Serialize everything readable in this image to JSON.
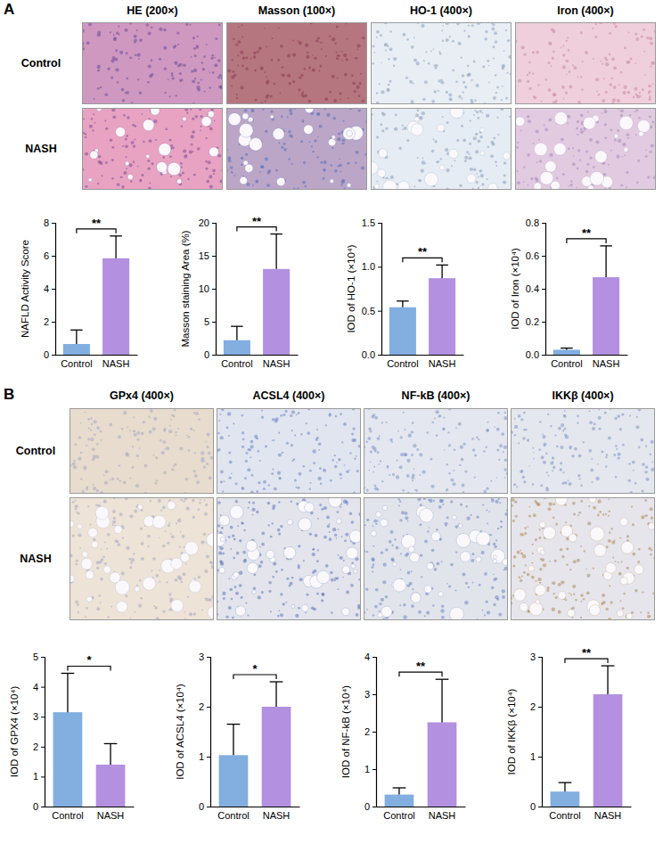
{
  "panels": [
    {
      "label": "A",
      "row_labels": [
        "Control",
        "NASH"
      ],
      "columns": [
        "HE (200×)",
        "Masson (100×)",
        "HO-1 (400×)",
        "Iron (400×)"
      ]
    },
    {
      "label": "B",
      "row_labels": [
        "Control",
        "NASH"
      ],
      "columns": [
        "GPx4 (400×)",
        "ACSL4 (400×)",
        "NF-kB (400×)",
        "IKKβ (400×)"
      ]
    }
  ],
  "chart_data": [
    {
      "type": "bar",
      "y_label": "NAFLD Activity Score",
      "categories": [
        "Control",
        "NASH"
      ],
      "values": [
        0.65,
        5.85
      ],
      "errors": [
        0.85,
        1.35
      ],
      "colors": [
        "#82aee0",
        "#b390e0"
      ],
      "ylim": [
        0,
        8
      ],
      "yticks": [
        0,
        2,
        4,
        6,
        8
      ],
      "annotations": [
        "**"
      ]
    },
    {
      "type": "bar",
      "y_label": "Masson staining Area (%)",
      "categories": [
        "Control",
        "NASH"
      ],
      "values": [
        2.2,
        13
      ],
      "errors": [
        2.1,
        5.3
      ],
      "colors": [
        "#82aee0",
        "#b390e0"
      ],
      "ylim": [
        0,
        20
      ],
      "yticks": [
        0,
        5,
        10,
        15,
        20
      ],
      "annotations": [
        "**"
      ]
    },
    {
      "type": "bar",
      "y_label": "IOD of HO-1 (×10⁴)",
      "categories": [
        "Control",
        "NASH"
      ],
      "values": [
        0.54,
        0.87
      ],
      "errors": [
        0.07,
        0.15
      ],
      "colors": [
        "#82aee0",
        "#b390e0"
      ],
      "ylim": [
        0,
        1.5
      ],
      "yticks": [
        {
          "value": 0,
          "label": "0.0"
        },
        {
          "value": 0.5,
          "label": "0.5"
        },
        {
          "value": 1,
          "label": "1.0"
        },
        {
          "value": 1.5,
          "label": "1.5"
        }
      ],
      "annotations": [
        "**"
      ]
    },
    {
      "type": "bar",
      "y_label": "IOD of Iron (×10⁴)",
      "categories": [
        "Control",
        "NASH"
      ],
      "values": [
        0.03,
        0.47
      ],
      "errors": [
        0.01,
        0.19
      ],
      "colors": [
        "#82aee0",
        "#b390e0"
      ],
      "ylim": [
        0,
        0.8
      ],
      "yticks": [
        {
          "value": 0,
          "label": "0.0"
        },
        {
          "value": 0.2,
          "label": "0.2"
        },
        {
          "value": 0.4,
          "label": "0.4"
        },
        {
          "value": 0.6,
          "label": "0.6"
        },
        {
          "value": 0.8,
          "label": "0.8"
        }
      ],
      "annotations": [
        "**"
      ]
    },
    {
      "type": "bar",
      "y_label": "IOD of GPX4 (×10⁴)",
      "categories": [
        "Control",
        "NASH"
      ],
      "values": [
        3.15,
        1.4
      ],
      "errors": [
        1.3,
        0.7
      ],
      "colors": [
        "#82aee0",
        "#b390e0"
      ],
      "ylim": [
        0,
        5
      ],
      "yticks": [
        0,
        1,
        2,
        3,
        4,
        5
      ],
      "annotations": [
        "*"
      ]
    },
    {
      "type": "bar",
      "y_label": "IOD of ACSL4 (×10⁴)",
      "categories": [
        "Control",
        "NASH"
      ],
      "values": [
        1.03,
        2.0
      ],
      "errors": [
        0.62,
        0.5
      ],
      "colors": [
        "#82aee0",
        "#b390e0"
      ],
      "ylim": [
        0,
        3
      ],
      "yticks": [
        0,
        1,
        2,
        3
      ],
      "annotations": [
        "*"
      ]
    },
    {
      "type": "bar",
      "y_label": "IOD of NF-kB (×10⁴)",
      "categories": [
        "Control",
        "NASH"
      ],
      "values": [
        0.32,
        2.25
      ],
      "errors": [
        0.18,
        1.15
      ],
      "colors": [
        "#82aee0",
        "#b390e0"
      ],
      "ylim": [
        0,
        4
      ],
      "yticks": [
        0,
        1,
        2,
        3,
        4
      ],
      "annotations": [
        "**"
      ]
    },
    {
      "type": "bar",
      "y_label": "IOD of IKKβ (×10⁴)",
      "categories": [
        "Control",
        "NASH"
      ],
      "values": [
        0.3,
        2.25
      ],
      "errors": [
        0.18,
        0.57
      ],
      "colors": [
        "#82aee0",
        "#b390e0"
      ],
      "ylim": [
        0,
        3
      ],
      "yticks": [
        0,
        1,
        2,
        3
      ],
      "annotations": [
        "**"
      ]
    }
  ]
}
